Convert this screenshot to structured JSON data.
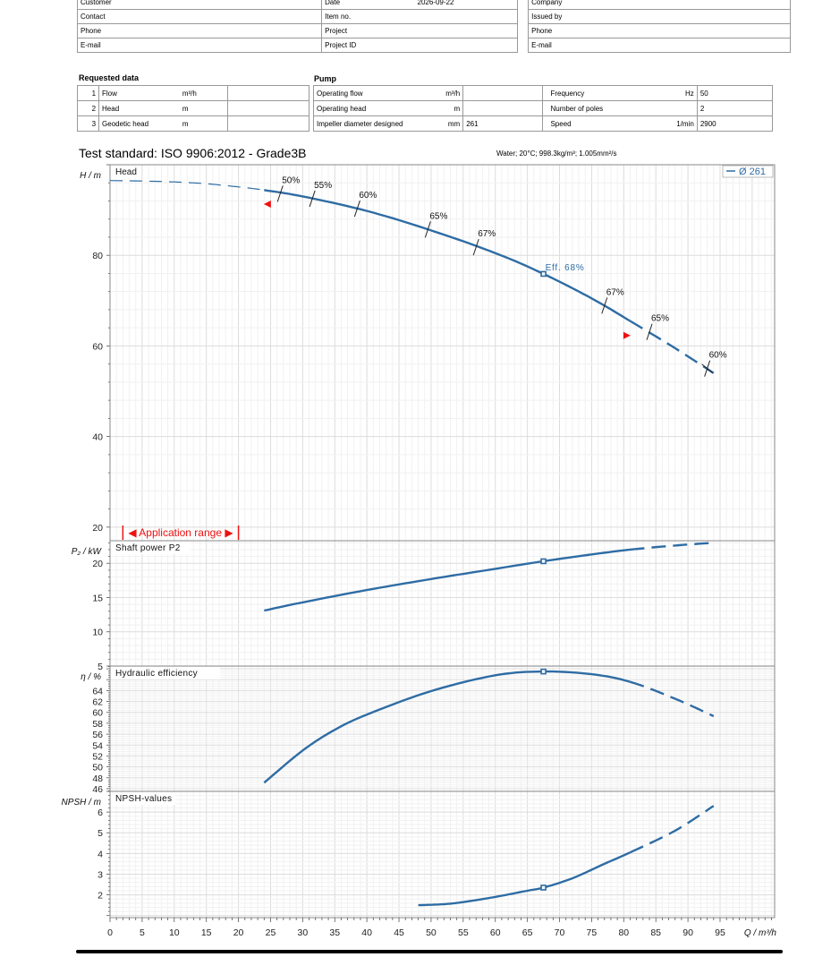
{
  "header": {
    "rows": [
      [
        "Customer",
        "Date",
        "2026-09-22",
        "Company"
      ],
      [
        "Contact",
        "Item no.",
        "",
        "Issued by"
      ],
      [
        "Phone",
        "Project",
        "",
        "Phone"
      ],
      [
        "E-mail",
        "Project ID",
        "",
        "E-mail"
      ]
    ]
  },
  "requested": {
    "title": "Requested data",
    "rows": [
      {
        "n": "1",
        "label": "Flow",
        "unit": "m³/h",
        "value": ""
      },
      {
        "n": "2",
        "label": "Head",
        "unit": "m",
        "value": ""
      },
      {
        "n": "3",
        "label": "Geodetic head",
        "unit": "m",
        "value": ""
      }
    ]
  },
  "pump": {
    "title": "Pump",
    "rows": [
      {
        "label": "Operating flow",
        "unit": "m³/h",
        "value": "",
        "label2": "Frequency",
        "unit2": "Hz",
        "value2": "50"
      },
      {
        "label": "Operating head",
        "unit": "m",
        "value": "",
        "label2": "Number of poles",
        "unit2": "",
        "value2": "2"
      },
      {
        "label": "Impeller diameter designed",
        "unit": "mm",
        "value": "261",
        "label2": "Speed",
        "unit2": "1/min",
        "value2": "2900"
      }
    ]
  },
  "standard": "Test standard: ISO 9906:2012 - Grade3B",
  "water": "Water; 20°C; 998.3kg/m³; 1.005mm²/s",
  "chart_data": [
    {
      "type": "line",
      "title": "Head",
      "ylabel": "H / m",
      "xlabel": "Q / m³/h",
      "xlim": [
        0,
        103.5
      ],
      "ylim": [
        17,
        100
      ],
      "yticks": [
        20,
        40,
        60,
        80
      ],
      "legend": "Ø 261",
      "legend_position": "top-right",
      "series": [
        {
          "name": "Ø 261",
          "x": [
            0,
            5,
            10,
            15,
            20,
            24,
            30,
            40,
            50,
            60,
            67.5,
            75,
            81,
            88,
            94
          ],
          "y": [
            96.5,
            96.4,
            96.2,
            95.8,
            95.1,
            94.4,
            93.0,
            89.8,
            85.5,
            80.5,
            75.9,
            70.5,
            65.5,
            59.5,
            54.0
          ]
        }
      ],
      "solid_range": [
        24,
        81
      ],
      "bep": {
        "x": 67.5,
        "y": 75.9,
        "label": "Eff.  68%"
      },
      "efficiency_marks": [
        {
          "label": "50%",
          "x": 26.5,
          "y": 93.6
        },
        {
          "label": "55%",
          "x": 31.5,
          "y": 92.5
        },
        {
          "label": "60%",
          "x": 38.5,
          "y": 90.3
        },
        {
          "label": "65%",
          "x": 49.5,
          "y": 85.7
        },
        {
          "label": "67%",
          "x": 57,
          "y": 81.8
        },
        {
          "label": "67%",
          "x": 77,
          "y": 68.9
        },
        {
          "label": "65%",
          "x": 84,
          "y": 63.1
        },
        {
          "label": "60%",
          "x": 93,
          "y": 55.0
        }
      ],
      "operating_limits": [
        {
          "x": 24.5,
          "y": 91.3
        },
        {
          "x": 80.5,
          "y": 62.3
        }
      ],
      "application_range": {
        "label": "Application range",
        "from": 2,
        "to": 20
      }
    },
    {
      "type": "line",
      "title": "Shaft power P2",
      "ylabel": "P₂ / kW",
      "ylim": [
        5,
        23.3
      ],
      "yticks": [
        5,
        10,
        15,
        20
      ],
      "series": [
        {
          "x": [
            24,
            30,
            40,
            50,
            60,
            67.5,
            75,
            81,
            88,
            94
          ],
          "y": [
            13.1,
            14.3,
            16.1,
            17.7,
            19.2,
            20.3,
            21.3,
            22.0,
            22.6,
            23.0
          ]
        }
      ],
      "solid_range": [
        24,
        81
      ],
      "bep": {
        "x": 67.5,
        "y": 20.3
      }
    },
    {
      "type": "line",
      "title": "Hydraulic efficiency",
      "ylabel": "η / %",
      "ylim": [
        45.5,
        68.5
      ],
      "yticks": [
        46,
        48,
        50,
        52,
        54,
        56,
        58,
        60,
        62,
        64
      ],
      "series": [
        {
          "x": [
            24,
            30,
            35,
            40,
            50,
            60,
            67.5,
            75,
            81,
            88,
            94
          ],
          "y": [
            47.1,
            53.0,
            56.8,
            59.6,
            63.9,
            66.8,
            67.5,
            67.0,
            65.6,
            62.5,
            59.3
          ]
        }
      ],
      "solid_range": [
        24,
        81
      ],
      "bep": {
        "x": 67.5,
        "y": 67.5
      }
    },
    {
      "type": "line",
      "title": "NPSH-values",
      "ylabel": "NPSH / m",
      "xlabel": "Q / m³/h",
      "ylim": [
        0.9,
        7
      ],
      "yticks": [
        2,
        3,
        4,
        5,
        6
      ],
      "xticks": [
        0,
        5,
        10,
        15,
        20,
        25,
        30,
        35,
        40,
        45,
        50,
        55,
        60,
        65,
        70,
        75,
        80,
        85,
        90,
        95
      ],
      "series": [
        {
          "x": [
            48,
            52,
            55,
            60,
            65,
            67.5,
            72,
            77,
            81,
            88,
            94
          ],
          "y": [
            1.5,
            1.55,
            1.65,
            1.9,
            2.2,
            2.35,
            2.8,
            3.5,
            4.05,
            5.1,
            6.3
          ]
        }
      ],
      "solid_range": [
        48,
        81
      ],
      "bep": {
        "x": 67.5,
        "y": 2.35
      }
    }
  ]
}
